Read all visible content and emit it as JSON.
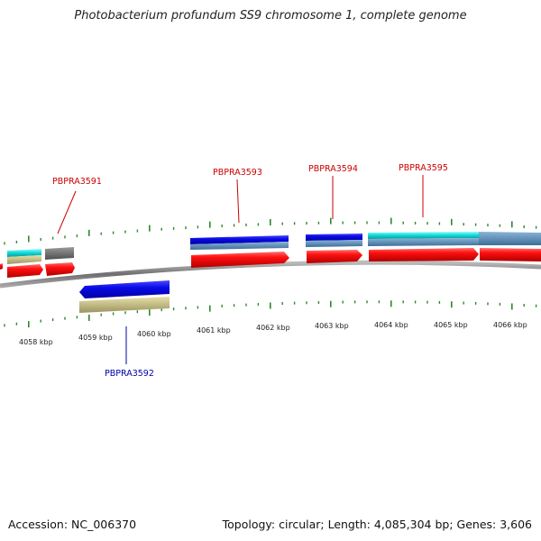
{
  "title": "Photobacterium profundum SS9 chromosome 1, complete genome",
  "accession": "Accession: NC_006370",
  "summary": "Topology: circular; Length: 4,085,304 bp; Genes: 3,606",
  "colors": {
    "forward_label": "#cc0000",
    "reverse_label": "#0000aa",
    "tick": "#2a8a2a",
    "backbone": "#7a7a7a"
  },
  "scale_labels": [
    "4058 kbp",
    "4059 kbp",
    "4060 kbp",
    "4061 kbp",
    "4062 kbp",
    "4063 kbp",
    "4064 kbp",
    "4065 kbp",
    "4066 kbp"
  ],
  "gene_labels": [
    {
      "name": "PBPRA3591",
      "strand": "forward"
    },
    {
      "name": "PBPRA3592",
      "strand": "reverse"
    },
    {
      "name": "PBPRA3593",
      "strand": "forward"
    },
    {
      "name": "PBPRA3594",
      "strand": "forward"
    },
    {
      "name": "PBPRA3595",
      "strand": "forward"
    }
  ]
}
